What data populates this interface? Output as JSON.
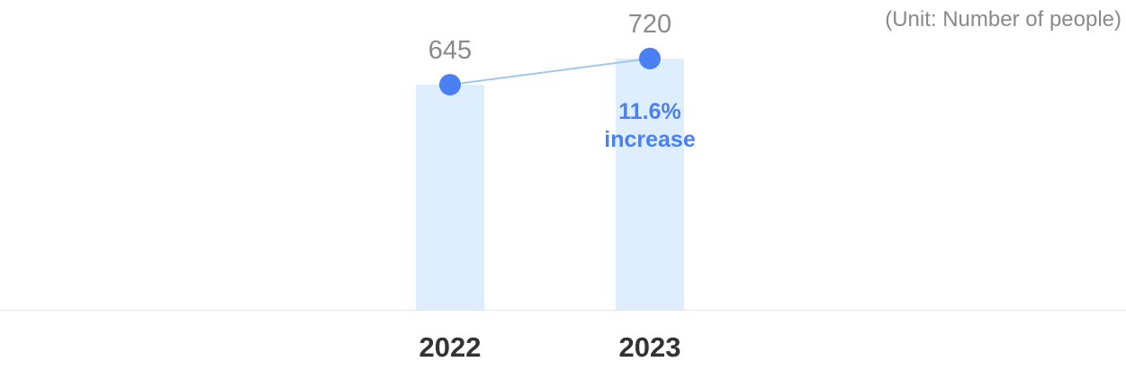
{
  "chart_data": {
    "type": "bar",
    "unit": "(Unit: Number of people)",
    "categories": [
      "2022",
      "2023"
    ],
    "values": [
      645,
      720
    ],
    "value_labels": [
      "645",
      "720"
    ],
    "annotation": {
      "line1": "11.6%",
      "line2": "increase"
    },
    "ylim": [
      0,
      720
    ],
    "grid": false,
    "legend": "none"
  },
  "colors": {
    "bar": "#dfeefe",
    "marker": "#4a80f3",
    "line": "#9fc8ef",
    "baseline": "#e6e6e6",
    "annotation": "#4a80f3"
  }
}
